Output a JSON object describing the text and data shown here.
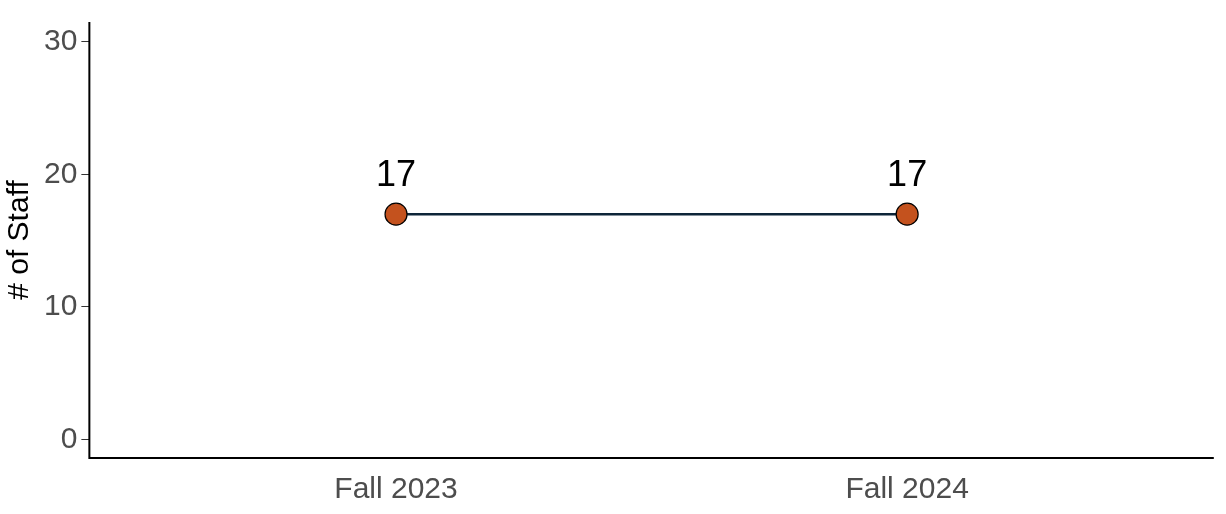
{
  "chart_data": {
    "type": "line",
    "ylabel": "# of Staff",
    "categories": [
      "Fall 2023",
      "Fall 2024"
    ],
    "series": [
      {
        "color": "#0d2538",
        "colors": [
          "#c4521e",
          "#c4521e"
        ],
        "values": [
          17,
          17
        ]
      }
    ],
    "marker": "circle",
    "ylim": [
      -1.4,
      31.5
    ],
    "yticks": [
      0,
      10,
      20,
      30
    ],
    "grid": false,
    "legend": false,
    "data_labels": true
  }
}
